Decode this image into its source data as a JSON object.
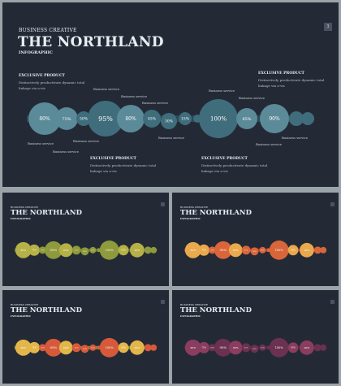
{
  "slides": [
    {
      "kicker": "BUSINESS CREATIVE",
      "title": "THE NORTHLAND",
      "subtitle": "INFOGRAPHIC",
      "page_number": "3",
      "block_heading": "EXCLUSIVE PRODUCT",
      "block_line1": "Distinctively productivate dynamic total",
      "block_line2": "linkage via a-vis",
      "service_label": "Business service",
      "bubble_values": [
        "80%",
        "75%",
        "50%",
        "95%",
        "80%",
        "45%",
        "30%",
        "15%",
        "100%",
        "85%",
        "90%"
      ],
      "colors": {
        "primary": "#5b8a99",
        "secondary": "#3f6d7b",
        "deep": "#2f5563"
      }
    },
    {
      "kicker": "BUSINESS CREATIVE",
      "title": "THE NORTHLAND",
      "subtitle": "INFOGRAPHIC",
      "colors": {
        "primary": "#b5b146",
        "secondary": "#8e9a3b",
        "deep": "#6f7d2f"
      }
    },
    {
      "kicker": "BUSINESS CREATIVE",
      "title": "THE NORTHLAND",
      "subtitle": "INFOGRAPHIC",
      "colors": {
        "primary": "#e9a94c",
        "secondary": "#d9663a",
        "deep": "#c2432f"
      }
    },
    {
      "kicker": "BUSINESS CREATIVE",
      "title": "THE NORTHLAND",
      "subtitle": "INFOGRAPHIC",
      "colors": {
        "primary": "#e3b64a",
        "secondary": "#d65a3a",
        "deep": "#a7b847"
      }
    },
    {
      "kicker": "BUSINESS CREATIVE",
      "title": "THE NORTHLAND",
      "subtitle": "INFOGRAPHIC",
      "colors": {
        "primary": "#8a3d5e",
        "secondary": "#6b3150",
        "deep": "#5a2944"
      }
    }
  ]
}
